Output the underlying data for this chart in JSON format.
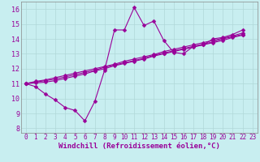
{
  "xlabel": "Windchill (Refroidissement éolien,°C)",
  "background_color": "#c8eef0",
  "grid_color": "#b0d8d8",
  "line_color": "#990099",
  "spine_color": "#888888",
  "xlim": [
    -0.5,
    23.5
  ],
  "ylim": [
    7.7,
    16.5
  ],
  "xticks": [
    0,
    1,
    2,
    3,
    4,
    5,
    6,
    7,
    8,
    9,
    10,
    11,
    12,
    13,
    14,
    15,
    16,
    17,
    18,
    19,
    20,
    21,
    22,
    23
  ],
  "yticks": [
    8,
    9,
    10,
    11,
    12,
    13,
    14,
    15,
    16
  ],
  "series": [
    [
      11.0,
      10.8,
      10.3,
      9.9,
      9.4,
      9.2,
      8.5,
      9.8,
      11.9,
      14.6,
      14.6,
      16.1,
      14.9,
      15.2,
      13.9,
      13.1,
      13.0,
      13.5,
      13.6,
      14.0,
      14.1,
      14.3,
      14.6
    ],
    [
      11.0,
      11.05,
      11.1,
      11.2,
      11.35,
      11.5,
      11.65,
      11.85,
      12.0,
      12.2,
      12.35,
      12.5,
      12.65,
      12.85,
      13.0,
      13.15,
      13.3,
      13.45,
      13.6,
      13.75,
      13.9,
      14.1,
      14.25
    ],
    [
      11.0,
      11.1,
      11.2,
      11.3,
      11.45,
      11.6,
      11.75,
      11.9,
      12.1,
      12.25,
      12.4,
      12.55,
      12.7,
      12.9,
      13.05,
      13.2,
      13.35,
      13.5,
      13.65,
      13.8,
      14.0,
      14.15,
      14.3
    ],
    [
      11.0,
      11.15,
      11.25,
      11.4,
      11.55,
      11.7,
      11.85,
      12.0,
      12.15,
      12.3,
      12.5,
      12.65,
      12.8,
      12.95,
      13.15,
      13.3,
      13.45,
      13.6,
      13.75,
      13.9,
      14.05,
      14.2,
      14.4
    ]
  ],
  "markersize": 2.5,
  "linewidth": 0.8,
  "tick_fontsize": 5.5,
  "xlabel_fontsize": 6.5
}
